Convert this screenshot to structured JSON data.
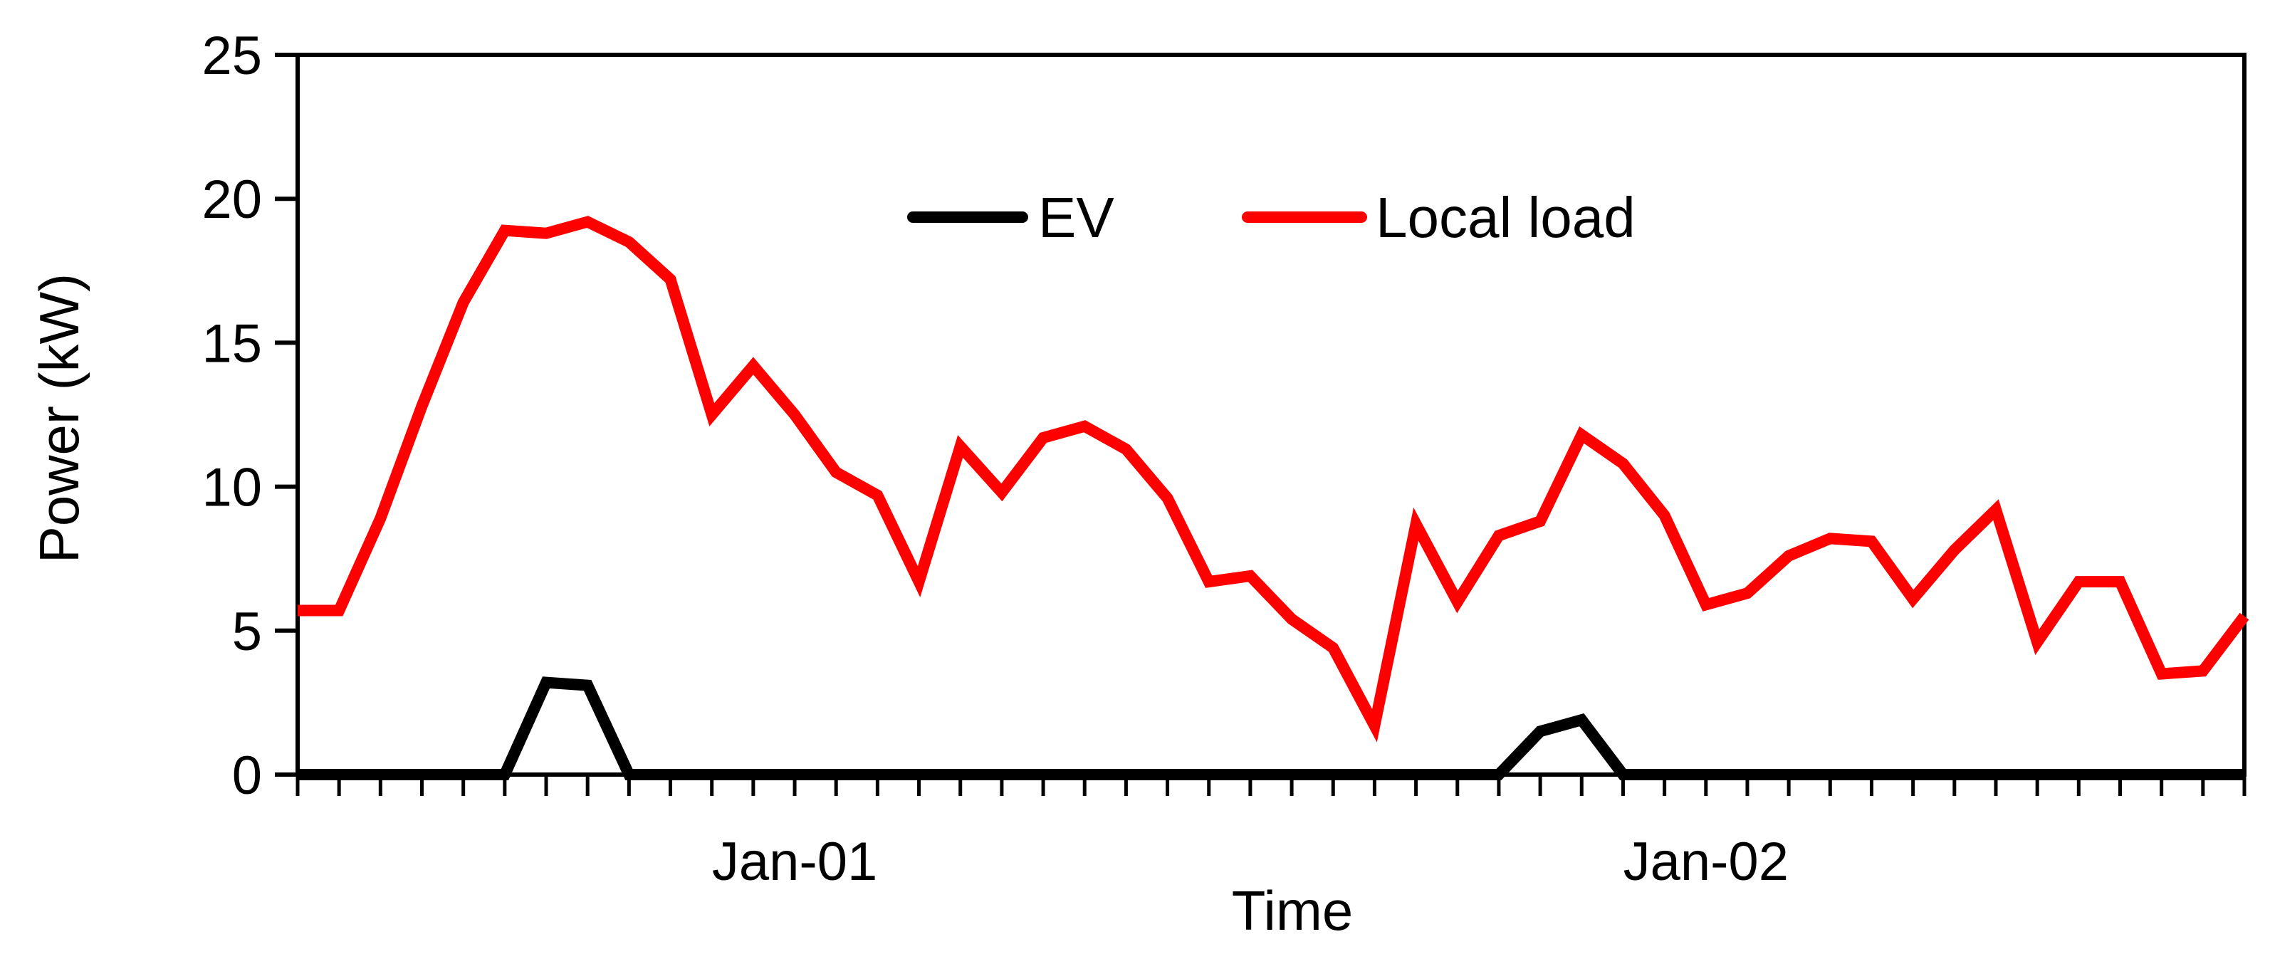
{
  "chart_data": {
    "type": "line",
    "title": "",
    "xlabel": "Time",
    "ylabel": "Power (kW)",
    "ylim": [
      0,
      25
    ],
    "yticks": [
      0,
      5,
      10,
      15,
      20,
      25
    ],
    "grid": false,
    "legend_position": "top-center",
    "x_tick_labels": [
      {
        "label": "Jan-01",
        "index": 12
      },
      {
        "label": "Jan-02",
        "index": 34
      }
    ],
    "x_minor_tick_count": 48,
    "series": [
      {
        "name": "EV",
        "color": "#000000",
        "values": [
          0,
          0,
          0,
          0,
          0,
          0,
          3.2,
          3.1,
          0,
          0,
          0,
          0,
          0,
          0,
          0,
          0,
          0,
          0,
          0,
          0,
          0,
          0,
          0,
          0,
          0,
          0,
          0,
          0,
          0,
          0,
          1.5,
          1.9,
          0,
          0,
          0,
          0,
          0,
          0,
          0,
          0,
          0,
          0,
          0,
          0,
          0,
          0,
          0,
          0
        ]
      },
      {
        "name": "Local load",
        "color": "#ff0000",
        "values": [
          5.7,
          5.7,
          8.9,
          12.8,
          16.4,
          18.9,
          18.8,
          19.2,
          18.5,
          17.2,
          12.5,
          14.2,
          12.5,
          10.5,
          9.7,
          6.7,
          11.4,
          9.8,
          11.7,
          12.1,
          11.3,
          9.6,
          6.7,
          6.9,
          5.4,
          4.4,
          1.7,
          8.7,
          6.0,
          8.3,
          8.8,
          11.8,
          10.8,
          9.0,
          5.9,
          6.3,
          7.6,
          8.2,
          8.1,
          6.1,
          7.8,
          9.2,
          4.6,
          6.7,
          6.7,
          3.5,
          3.6,
          5.5
        ]
      }
    ]
  }
}
